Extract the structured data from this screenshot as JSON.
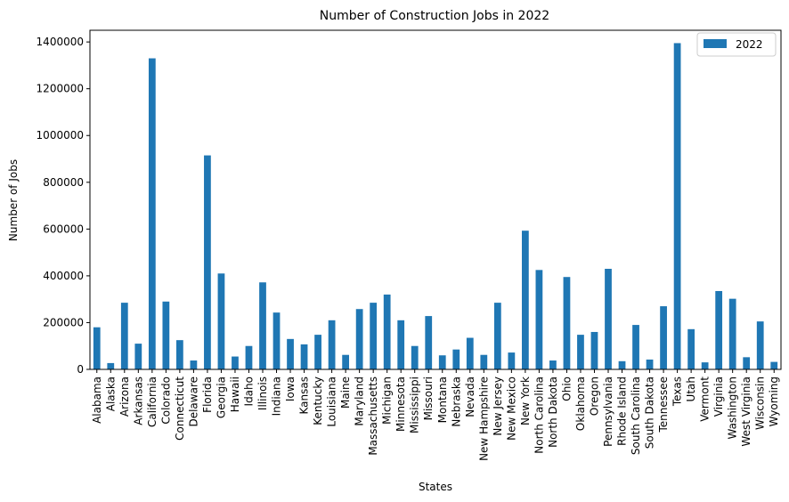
{
  "chart_data": {
    "type": "bar",
    "title": "Number of Construction Jobs in 2022",
    "xlabel": "States",
    "ylabel": "Number of Jobs",
    "ylim": [
      0,
      1450000
    ],
    "yticks": [
      0,
      200000,
      400000,
      600000,
      800000,
      1000000,
      1200000,
      1400000
    ],
    "grid": false,
    "legend_position": "top-right",
    "bar_color": "#1f77b4",
    "categories": [
      "Alabama",
      "Alaska",
      "Arizona",
      "Arkansas",
      "California",
      "Colorado",
      "Connecticut",
      "Delaware",
      "Florida",
      "Georgia",
      "Hawaii",
      "Idaho",
      "Illinois",
      "Indiana",
      "Iowa",
      "Kansas",
      "Kentucky",
      "Louisiana",
      "Maine",
      "Maryland",
      "Massachusetts",
      "Michigan",
      "Minnesota",
      "Mississippi",
      "Missouri",
      "Montana",
      "Nebraska",
      "Nevada",
      "New Hampshire",
      "New Jersey",
      "New Mexico",
      "New York",
      "North Carolina",
      "North Dakota",
      "Ohio",
      "Oklahoma",
      "Oregon",
      "Pennsylvania",
      "Rhode Island",
      "South Carolina",
      "South Dakota",
      "Tennessee",
      "Texas",
      "Utah",
      "Vermont",
      "Virginia",
      "Washington",
      "West Virginia",
      "Wisconsin",
      "Wyoming"
    ],
    "series": [
      {
        "name": "2022",
        "values": [
          180000,
          27000,
          285000,
          110000,
          1330000,
          290000,
          125000,
          38000,
          915000,
          410000,
          55000,
          100000,
          372000,
          243000,
          130000,
          107000,
          148000,
          210000,
          62000,
          258000,
          285000,
          320000,
          210000,
          100000,
          228000,
          60000,
          85000,
          135000,
          62000,
          285000,
          72000,
          593000,
          425000,
          38000,
          395000,
          148000,
          160000,
          430000,
          35000,
          190000,
          42000,
          270000,
          1395000,
          172000,
          30000,
          335000,
          302000,
          52000,
          205000,
          32000
        ]
      }
    ]
  }
}
